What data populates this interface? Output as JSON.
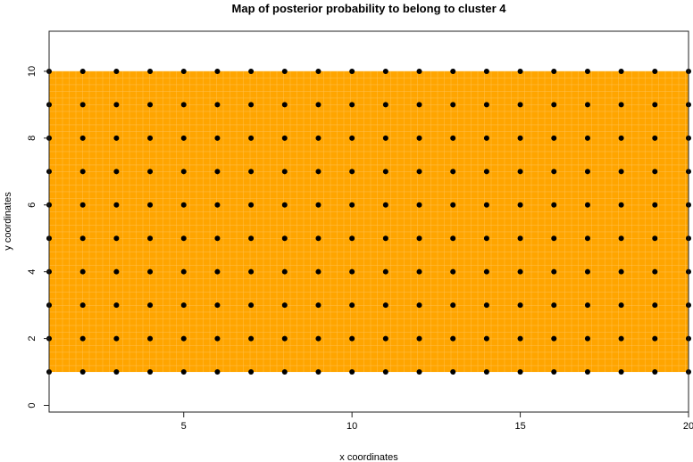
{
  "chart_data": {
    "type": "heatmap",
    "title": "Map of posterior probability to belong to cluster  4",
    "xlabel": "x coordinates",
    "ylabel": "y coordinates",
    "xlim": [
      1,
      20
    ],
    "ylim": [
      -0.2,
      11.2
    ],
    "x_ticks": [
      5,
      10,
      15,
      20
    ],
    "y_ticks": [
      0,
      2,
      4,
      6,
      8,
      10
    ],
    "fill_region": {
      "x": [
        1,
        20
      ],
      "y": [
        1,
        10
      ]
    },
    "fill_color": "#FFA500",
    "fill_grid_color": "#FFC55A",
    "points": {
      "x": [
        1,
        2,
        3,
        4,
        5,
        6,
        7,
        8,
        9,
        10,
        11,
        12,
        13,
        14,
        15,
        16,
        17,
        18,
        19,
        20
      ],
      "y": [
        1,
        2,
        3,
        4,
        5,
        6,
        7,
        8,
        9,
        10
      ],
      "color": "#000000"
    },
    "grid": false
  }
}
